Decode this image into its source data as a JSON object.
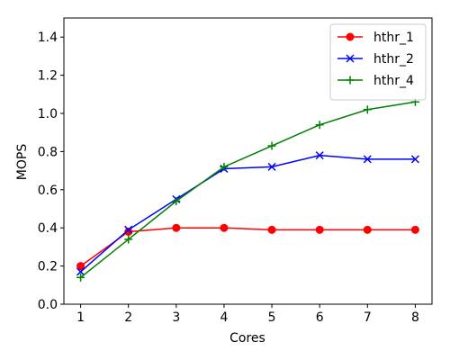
{
  "chart_data": {
    "type": "line",
    "xlabel": "Cores",
    "ylabel": "MOPS",
    "x": [
      1,
      2,
      3,
      4,
      5,
      6,
      7,
      8
    ],
    "xlim": [
      0.65,
      8.35
    ],
    "ylim": [
      0.0,
      1.5
    ],
    "xticks": [
      1,
      2,
      3,
      4,
      5,
      6,
      7,
      8
    ],
    "yticks": [
      "0.0",
      "0.2",
      "0.4",
      "0.6",
      "0.8",
      "1.0",
      "1.2",
      "1.4"
    ],
    "grid": false,
    "legend_position": "top-right",
    "series": [
      {
        "name": "hthr_1",
        "color": "#ff0000",
        "marker": "circle",
        "values": [
          0.2,
          0.38,
          0.4,
          0.4,
          0.39,
          0.39,
          0.39,
          0.39
        ]
      },
      {
        "name": "hthr_2",
        "color": "#0000ff",
        "marker": "x",
        "values": [
          0.17,
          0.39,
          0.55,
          0.71,
          0.72,
          0.78,
          0.76,
          0.76
        ]
      },
      {
        "name": "hthr_4",
        "color": "#008000",
        "marker": "plus",
        "values": [
          0.14,
          0.34,
          0.54,
          0.72,
          0.83,
          0.94,
          1.02,
          1.06
        ]
      }
    ]
  }
}
